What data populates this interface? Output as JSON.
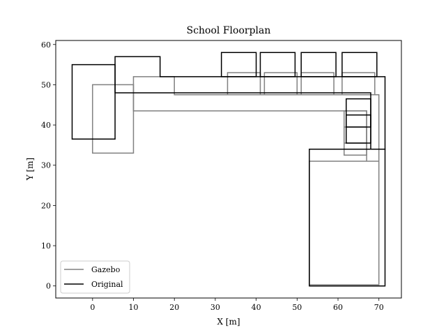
{
  "chart_data": {
    "type": "line",
    "title": "School Floorplan",
    "xlabel": "X [m]",
    "ylabel": "Y [m]",
    "xlim": [
      -9,
      75.5
    ],
    "ylim": [
      -3,
      61
    ],
    "xticks": [
      0,
      10,
      20,
      30,
      40,
      50,
      60,
      70
    ],
    "yticks": [
      0,
      10,
      20,
      30,
      40,
      50,
      60
    ],
    "grid": false,
    "legend_position": "lower-left",
    "series": [
      {
        "name": "Gazebo",
        "color": "#808080",
        "polygons": [
          [
            [
              0,
              33
            ],
            [
              10,
              33
            ],
            [
              10,
              50
            ],
            [
              0,
              50
            ]
          ],
          [
            [
              10,
              43.5
            ],
            [
              67,
              43.5
            ],
            [
              67,
              31
            ],
            [
              70,
              31
            ],
            [
              70,
              0.3
            ],
            [
              53,
              0.3
            ],
            [
              53,
              31
            ],
            [
              70,
              31
            ],
            [
              70,
              47.5
            ],
            [
              20,
              47.5
            ],
            [
              20,
              52
            ],
            [
              10,
              52
            ]
          ],
          [
            [
              33,
              47.5
            ],
            [
              41,
              47.5
            ],
            [
              41,
              53
            ],
            [
              33,
              53
            ]
          ],
          [
            [
              42,
              47.5
            ],
            [
              50,
              47.5
            ],
            [
              50,
              53
            ],
            [
              42,
              53
            ]
          ],
          [
            [
              51,
              47.5
            ],
            [
              59,
              47.5
            ],
            [
              59,
              53
            ],
            [
              51,
              53
            ]
          ],
          [
            [
              61,
              47.5
            ],
            [
              69,
              47.5
            ],
            [
              69,
              53
            ],
            [
              61,
              53
            ]
          ],
          [
            [
              61.5,
              32.5
            ],
            [
              67,
              32.5
            ],
            [
              67,
              43.5
            ],
            [
              61.5,
              43.5
            ]
          ],
          [
            [
              61.5,
              35.5
            ],
            [
              67,
              35.5
            ],
            [
              67,
              39.5
            ],
            [
              61.5,
              39.5
            ]
          ]
        ]
      },
      {
        "name": "Original",
        "color": "#000000",
        "polygons": [
          [
            [
              -5,
              36.5
            ],
            [
              5.5,
              36.5
            ],
            [
              5.5,
              55
            ],
            [
              -5,
              55
            ]
          ],
          [
            [
              5.5,
              48
            ],
            [
              68,
              48
            ],
            [
              68,
              34
            ],
            [
              71.5,
              34
            ],
            [
              71.5,
              52
            ],
            [
              16.5,
              52
            ],
            [
              16.5,
              57
            ],
            [
              5.5,
              57
            ]
          ],
          [
            [
              53,
              0
            ],
            [
              71.5,
              0
            ],
            [
              71.5,
              34
            ],
            [
              53,
              34
            ]
          ],
          [
            [
              31.5,
              52
            ],
            [
              40,
              52
            ],
            [
              40,
              58
            ],
            [
              31.5,
              58
            ]
          ],
          [
            [
              41,
              52
            ],
            [
              49.5,
              52
            ],
            [
              49.5,
              58
            ],
            [
              41,
              58
            ]
          ],
          [
            [
              51,
              52
            ],
            [
              59.5,
              52
            ],
            [
              59.5,
              58
            ],
            [
              51,
              58
            ]
          ],
          [
            [
              61,
              52
            ],
            [
              69.5,
              52
            ],
            [
              69.5,
              58
            ],
            [
              61,
              58
            ]
          ],
          [
            [
              62,
              35.5
            ],
            [
              68,
              35.5
            ],
            [
              68,
              46.5
            ],
            [
              62,
              46.5
            ]
          ],
          [
            [
              62,
              39.5
            ],
            [
              68,
              39.5
            ],
            [
              68,
              42.5
            ],
            [
              62,
              42.5
            ]
          ]
        ]
      }
    ]
  }
}
